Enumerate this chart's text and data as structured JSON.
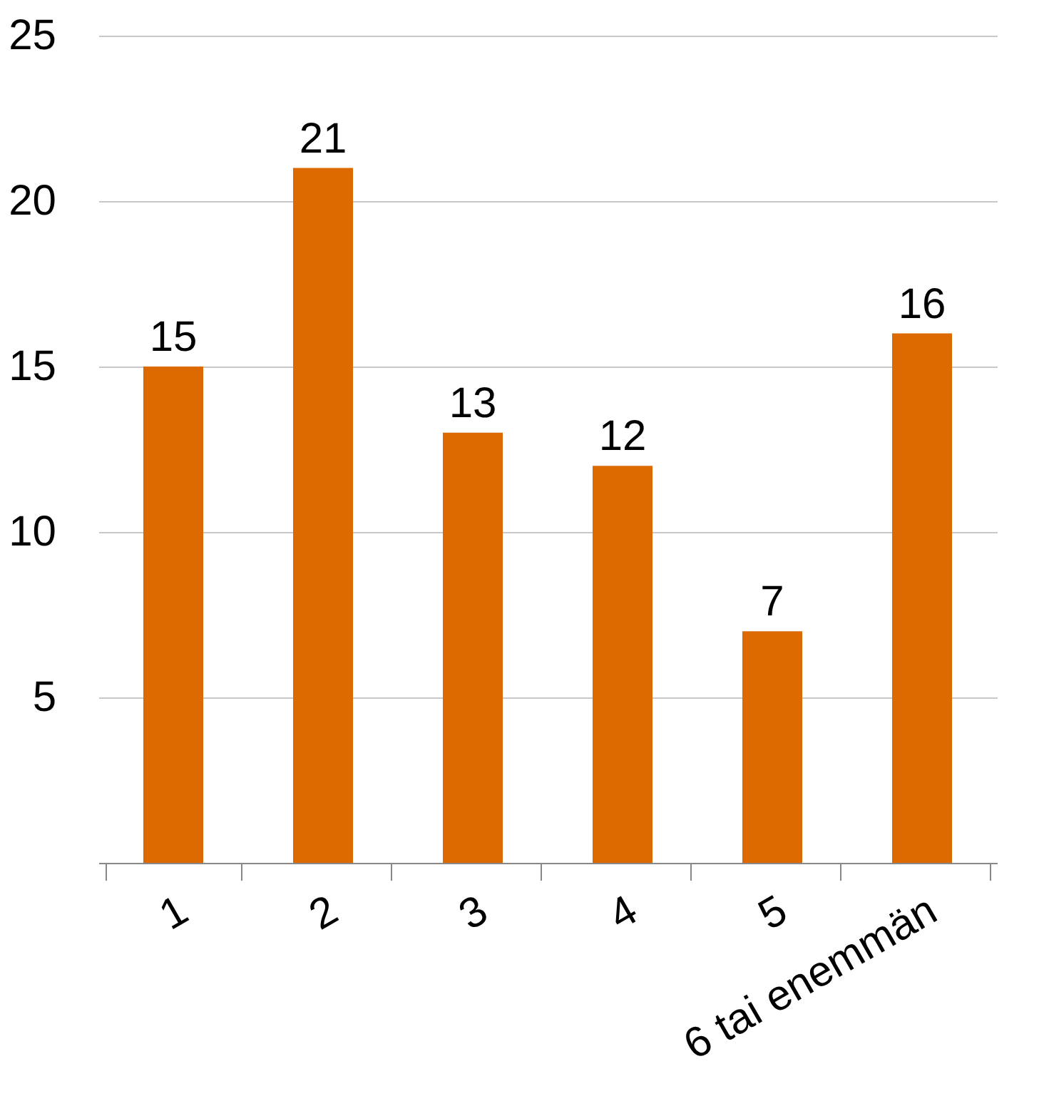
{
  "chart_data": {
    "type": "bar",
    "categories": [
      "1",
      "2",
      "3",
      "4",
      "5",
      "6 tai enemmän"
    ],
    "values": [
      15,
      21,
      13,
      12,
      7,
      16
    ],
    "color": "#dd6a00",
    "ylim": [
      0,
      25
    ],
    "yticks": [
      {
        "value": 0,
        "label": null
      },
      5,
      10,
      15,
      20,
      25
    ],
    "grid": "y",
    "data_labels": true
  }
}
